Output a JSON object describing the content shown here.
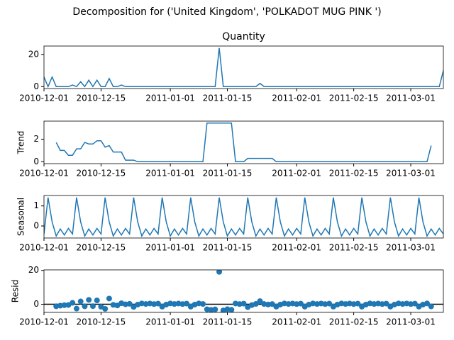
{
  "chart_data": {
    "type": "decomposition",
    "title": "Decomposition for ('United Kingdom', 'POLKADOT MUG PINK ')",
    "x": [
      "2010-12-01",
      "2010-12-02",
      "2010-12-03",
      "2010-12-04",
      "2010-12-05",
      "2010-12-06",
      "2010-12-07",
      "2010-12-08",
      "2010-12-09",
      "2010-12-10",
      "2010-12-11",
      "2010-12-12",
      "2010-12-13",
      "2010-12-14",
      "2010-12-15",
      "2010-12-16",
      "2010-12-17",
      "2010-12-18",
      "2010-12-19",
      "2010-12-20",
      "2010-12-21",
      "2010-12-22",
      "2010-12-23",
      "2010-12-24",
      "2010-12-25",
      "2010-12-26",
      "2010-12-27",
      "2010-12-28",
      "2010-12-29",
      "2010-12-30",
      "2010-12-31",
      "2011-01-01",
      "2011-01-02",
      "2011-01-03",
      "2011-01-04",
      "2011-01-05",
      "2011-01-06",
      "2011-01-07",
      "2011-01-08",
      "2011-01-09",
      "2011-01-10",
      "2011-01-11",
      "2011-01-12",
      "2011-01-13",
      "2011-01-14",
      "2011-01-15",
      "2011-01-16",
      "2011-01-17",
      "2011-01-18",
      "2011-01-19",
      "2011-01-20",
      "2011-01-21",
      "2011-01-22",
      "2011-01-23",
      "2011-01-24",
      "2011-01-25",
      "2011-01-26",
      "2011-01-27",
      "2011-01-28",
      "2011-01-29",
      "2011-01-30",
      "2011-01-31",
      "2011-02-01",
      "2011-02-02",
      "2011-02-03",
      "2011-02-04",
      "2011-02-05",
      "2011-02-06",
      "2011-02-07",
      "2011-02-08",
      "2011-02-09",
      "2011-02-10",
      "2011-02-11",
      "2011-02-12",
      "2011-02-13",
      "2011-02-14",
      "2011-02-15",
      "2011-02-16",
      "2011-02-17",
      "2011-02-18",
      "2011-02-19",
      "2011-02-20",
      "2011-02-21",
      "2011-02-22",
      "2011-02-23",
      "2011-02-24",
      "2011-02-25",
      "2011-02-26",
      "2011-02-27",
      "2011-02-28",
      "2011-03-01",
      "2011-03-02",
      "2011-03-03",
      "2011-03-04",
      "2011-03-05",
      "2011-03-06",
      "2011-03-07",
      "2011-03-08",
      "2011-03-09"
    ],
    "xlim": [
      "2010-12-01",
      "2011-03-09"
    ],
    "xticks": [
      "2010-12-01",
      "2010-12-15",
      "2011-01-01",
      "2011-01-15",
      "2011-02-01",
      "2011-02-15",
      "2011-03-01"
    ],
    "panels": [
      {
        "type": "line",
        "title": "Quantity",
        "color": "#1f77b4",
        "ylim": [
          -1.2,
          25.2
        ],
        "yticks": [
          0,
          20
        ],
        "values": [
          6,
          0,
          6,
          0,
          0,
          0,
          0,
          1,
          0,
          3,
          0,
          4,
          0,
          4,
          0,
          0,
          5,
          0,
          0,
          1,
          0,
          0,
          0,
          0,
          0,
          0,
          0,
          0,
          0,
          0,
          0,
          0,
          0,
          0,
          0,
          0,
          0,
          0,
          0,
          0,
          0,
          0,
          0,
          24,
          0,
          0,
          0,
          0,
          0,
          0,
          0,
          0,
          0,
          2,
          0,
          0,
          0,
          0,
          0,
          0,
          0,
          0,
          0,
          0,
          0,
          0,
          0,
          0,
          0,
          0,
          0,
          0,
          0,
          0,
          0,
          0,
          0,
          0,
          0,
          0,
          0,
          0,
          0,
          0,
          0,
          0,
          0,
          0,
          0,
          0,
          0,
          0,
          0,
          0,
          0,
          0,
          0,
          0,
          10
        ]
      },
      {
        "type": "line",
        "ylabel": "Trend",
        "color": "#1f77b4",
        "ylim": [
          -0.17,
          3.6
        ],
        "yticks": [
          0,
          2
        ],
        "values": [
          null,
          null,
          null,
          1.71,
          1,
          1,
          0.57,
          0.57,
          1.14,
          1.14,
          1.71,
          1.57,
          1.57,
          1.86,
          1.86,
          1.29,
          1.43,
          0.86,
          0.86,
          0.86,
          0.14,
          0.14,
          0.14,
          0,
          0,
          0,
          0,
          0,
          0,
          0,
          0,
          0,
          0,
          0,
          0,
          0,
          0,
          0,
          0,
          0,
          3.43,
          3.43,
          3.43,
          3.43,
          3.43,
          3.43,
          3.43,
          0,
          0,
          0,
          0.29,
          0.29,
          0.29,
          0.29,
          0.29,
          0.29,
          0.29,
          0,
          0,
          0,
          0,
          0,
          0,
          0,
          0,
          0,
          0,
          0,
          0,
          0,
          0,
          0,
          0,
          0,
          0,
          0,
          0,
          0,
          0,
          0,
          0,
          0,
          0,
          0,
          0,
          0,
          0,
          0,
          0,
          0,
          0,
          0,
          0,
          0,
          0,
          1.43,
          null,
          null,
          null
        ]
      },
      {
        "type": "line",
        "ylabel": "Seasonal",
        "color": "#1f77b4",
        "ylim": [
          -0.6,
          1.52
        ],
        "yticks": [
          0,
          1
        ],
        "values": [
          -0.4,
          1.42,
          0.2,
          -0.5,
          -0.15,
          -0.45,
          -0.12,
          -0.4,
          1.42,
          0.2,
          -0.5,
          -0.15,
          -0.45,
          -0.12,
          -0.4,
          1.42,
          0.2,
          -0.5,
          -0.15,
          -0.45,
          -0.12,
          -0.4,
          1.42,
          0.2,
          -0.5,
          -0.15,
          -0.45,
          -0.12,
          -0.4,
          1.42,
          0.2,
          -0.5,
          -0.15,
          -0.45,
          -0.12,
          -0.4,
          1.42,
          0.2,
          -0.5,
          -0.15,
          -0.45,
          -0.12,
          -0.4,
          1.42,
          0.2,
          -0.5,
          -0.15,
          -0.45,
          -0.12,
          -0.4,
          1.42,
          0.2,
          -0.5,
          -0.15,
          -0.45,
          -0.12,
          -0.4,
          1.42,
          0.2,
          -0.5,
          -0.15,
          -0.45,
          -0.12,
          -0.4,
          1.42,
          0.2,
          -0.5,
          -0.15,
          -0.45,
          -0.12,
          -0.4,
          1.42,
          0.2,
          -0.5,
          -0.15,
          -0.45,
          -0.12,
          -0.4,
          1.42,
          0.2,
          -0.5,
          -0.15,
          -0.45,
          -0.12,
          -0.4,
          1.42,
          0.2,
          -0.5,
          -0.15,
          -0.45,
          -0.12,
          -0.4,
          1.42,
          0.2,
          -0.5,
          -0.15,
          -0.45,
          -0.12,
          -0.4
        ]
      },
      {
        "type": "scatter",
        "ylabel": "Resid",
        "color": "#1f77b4",
        "ylim": [
          -4.8,
          20.3
        ],
        "yticks": [
          0,
          20
        ],
        "hline": 0,
        "values": [
          null,
          null,
          null,
          -1.21,
          -0.85,
          -0.55,
          -0.45,
          0.83,
          -2.56,
          1.66,
          -1.21,
          2.58,
          -1.12,
          2.26,
          -1.46,
          -2.71,
          3.37,
          -0.36,
          -0.71,
          0.59,
          -0.02,
          0.26,
          -1.56,
          -0.2,
          0.5,
          0.15,
          0.45,
          0.12,
          0.4,
          -1.42,
          -0.2,
          0.5,
          0.15,
          0.45,
          0.12,
          0.4,
          -1.42,
          -0.2,
          0.5,
          0.15,
          -2.98,
          -3.31,
          -3.03,
          19.15,
          -3.63,
          -2.93,
          -3.28,
          0.45,
          0.12,
          0.4,
          -1.71,
          -0.49,
          0.21,
          1.86,
          0.16,
          -0.17,
          0.11,
          -1.42,
          -0.2,
          0.5,
          0.15,
          0.45,
          0.12,
          0.4,
          -1.42,
          -0.2,
          0.5,
          0.15,
          0.45,
          0.12,
          0.4,
          -1.42,
          -0.2,
          0.5,
          0.15,
          0.45,
          0.12,
          0.4,
          -1.42,
          -0.2,
          0.5,
          0.15,
          0.45,
          0.12,
          0.4,
          -1.42,
          -0.2,
          0.5,
          0.15,
          0.45,
          0.12,
          0.4,
          -1.42,
          -0.2,
          0.5,
          -1.28,
          null,
          null,
          null
        ]
      }
    ]
  }
}
